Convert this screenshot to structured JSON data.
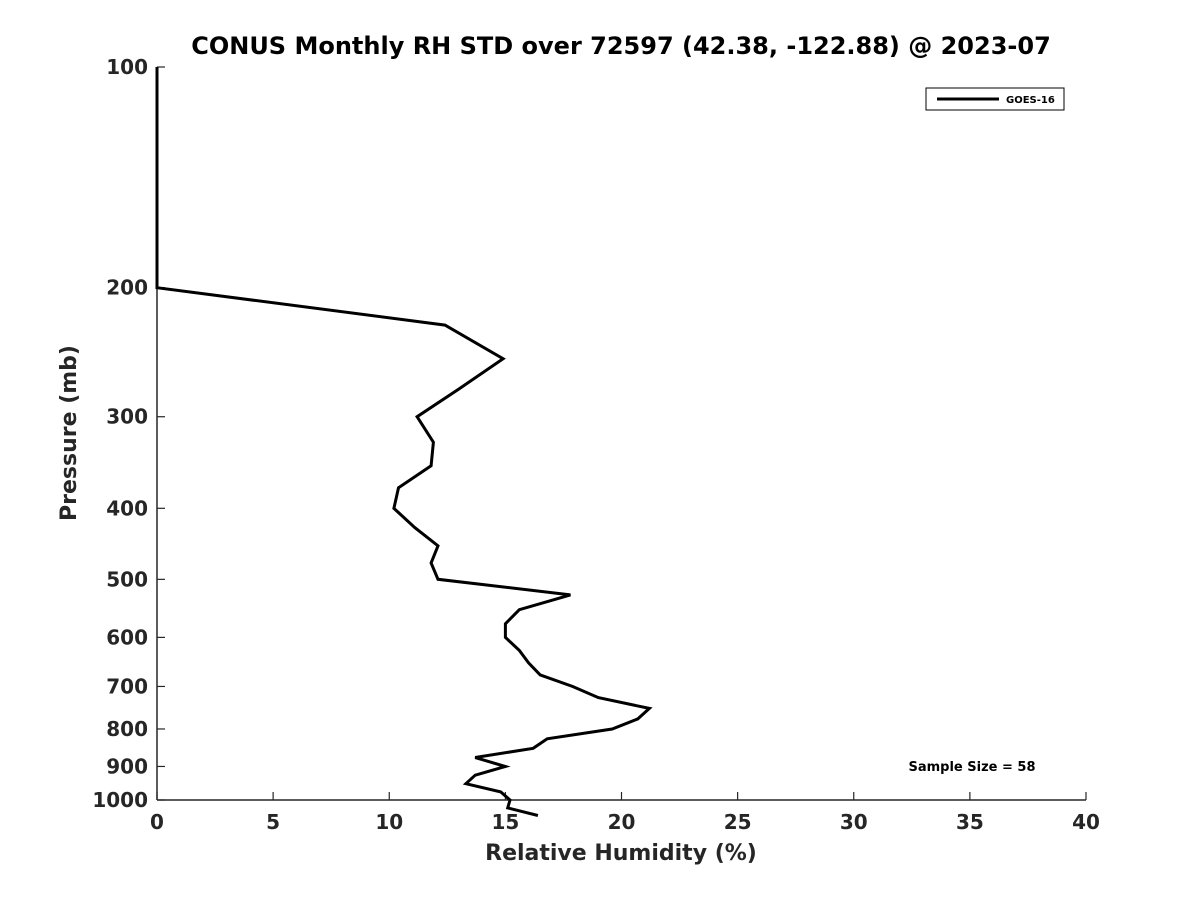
{
  "chart_data": {
    "type": "line",
    "title": "CONUS Monthly RH STD over 72597 (42.38, -122.88) @ 2023-07",
    "xlabel": "Relative Humidity (%)",
    "ylabel": "Pressure (mb)",
    "xlim": [
      0,
      40
    ],
    "ylim": [
      1000,
      100
    ],
    "y_scale": "log",
    "y_inverted": true,
    "x_ticks": [
      0,
      5,
      10,
      15,
      20,
      25,
      30,
      35,
      40
    ],
    "x_tick_labels": [
      "0",
      "5",
      "10",
      "15",
      "20",
      "25",
      "30",
      "35",
      "40"
    ],
    "y_ticks": [
      100,
      200,
      300,
      400,
      500,
      600,
      700,
      800,
      900,
      1000
    ],
    "y_tick_labels": [
      "100",
      "200",
      "300",
      "400",
      "500",
      "600",
      "700",
      "800",
      "900",
      "1000"
    ],
    "grid": false,
    "legend_position": "top-right",
    "series": [
      {
        "name": "GOES-16",
        "color": "#000000",
        "points": [
          {
            "x": 0,
            "y": 100
          },
          {
            "x": 0,
            "y": 150
          },
          {
            "x": 0,
            "y": 200
          },
          {
            "x": 12.4,
            "y": 225
          },
          {
            "x": 14.9,
            "y": 250
          },
          {
            "x": 13.0,
            "y": 275
          },
          {
            "x": 11.2,
            "y": 300
          },
          {
            "x": 11.9,
            "y": 325
          },
          {
            "x": 11.8,
            "y": 350
          },
          {
            "x": 10.4,
            "y": 375
          },
          {
            "x": 10.2,
            "y": 400
          },
          {
            "x": 11.1,
            "y": 425
          },
          {
            "x": 12.1,
            "y": 450
          },
          {
            "x": 11.8,
            "y": 475
          },
          {
            "x": 12.1,
            "y": 500
          },
          {
            "x": 17.8,
            "y": 525
          },
          {
            "x": 15.6,
            "y": 550
          },
          {
            "x": 15.0,
            "y": 575
          },
          {
            "x": 15.0,
            "y": 600
          },
          {
            "x": 15.6,
            "y": 625
          },
          {
            "x": 16.0,
            "y": 650
          },
          {
            "x": 16.5,
            "y": 675
          },
          {
            "x": 17.9,
            "y": 700
          },
          {
            "x": 19.0,
            "y": 725
          },
          {
            "x": 21.2,
            "y": 750
          },
          {
            "x": 20.7,
            "y": 775
          },
          {
            "x": 19.6,
            "y": 800
          },
          {
            "x": 16.8,
            "y": 825
          },
          {
            "x": 16.2,
            "y": 850
          },
          {
            "x": 13.7,
            "y": 875
          },
          {
            "x": 15.0,
            "y": 900
          },
          {
            "x": 13.7,
            "y": 925
          },
          {
            "x": 13.3,
            "y": 950
          },
          {
            "x": 14.8,
            "y": 975
          },
          {
            "x": 15.2,
            "y": 1000
          },
          {
            "x": 15.1,
            "y": 1025
          },
          {
            "x": 16.4,
            "y": 1050
          }
        ]
      }
    ],
    "annotations": [
      {
        "text": "Sample Size = 58"
      }
    ]
  }
}
